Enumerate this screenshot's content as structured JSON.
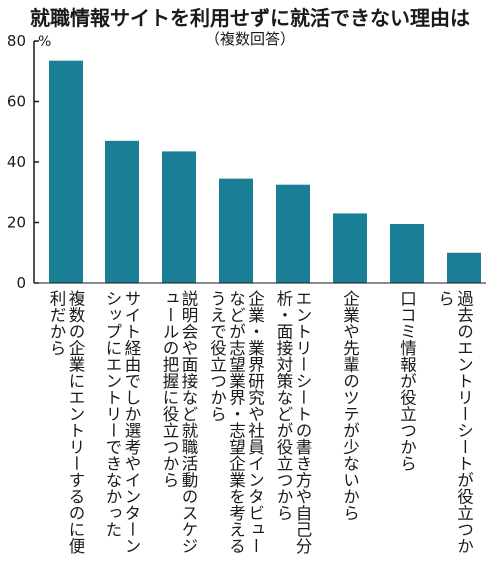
{
  "chart_data": {
    "type": "bar",
    "title": "就職情報サイトを利用せずに就活できない理由は",
    "subtitle": "（複数回答）",
    "unit_label": "%",
    "ylim": [
      0,
      80
    ],
    "yticks": [
      "0",
      "20",
      "40",
      "60",
      "80"
    ],
    "categories": [
      "複数の企業にエントリーするのに便利だから",
      "サイト経由でしか選考やインターンシップにエントリーできなかった",
      "説明会や面接など就職活動のスケジュールの把握に役立つから",
      "企業・業界研究や社員インタビューなどが志望業界・志望企業を考えるうえで役立つから",
      "エントリーシートの書き方や自己分析・面接対策などが役立つから",
      "企業や先輩のツテが少ないから",
      "口コミ情報が役立つから",
      "過去のエントリーシートが役立つから"
    ],
    "values": [
      73.5,
      47,
      43.5,
      34.5,
      32.5,
      23,
      19.5,
      10
    ],
    "bar_color": "#1a7f96"
  }
}
